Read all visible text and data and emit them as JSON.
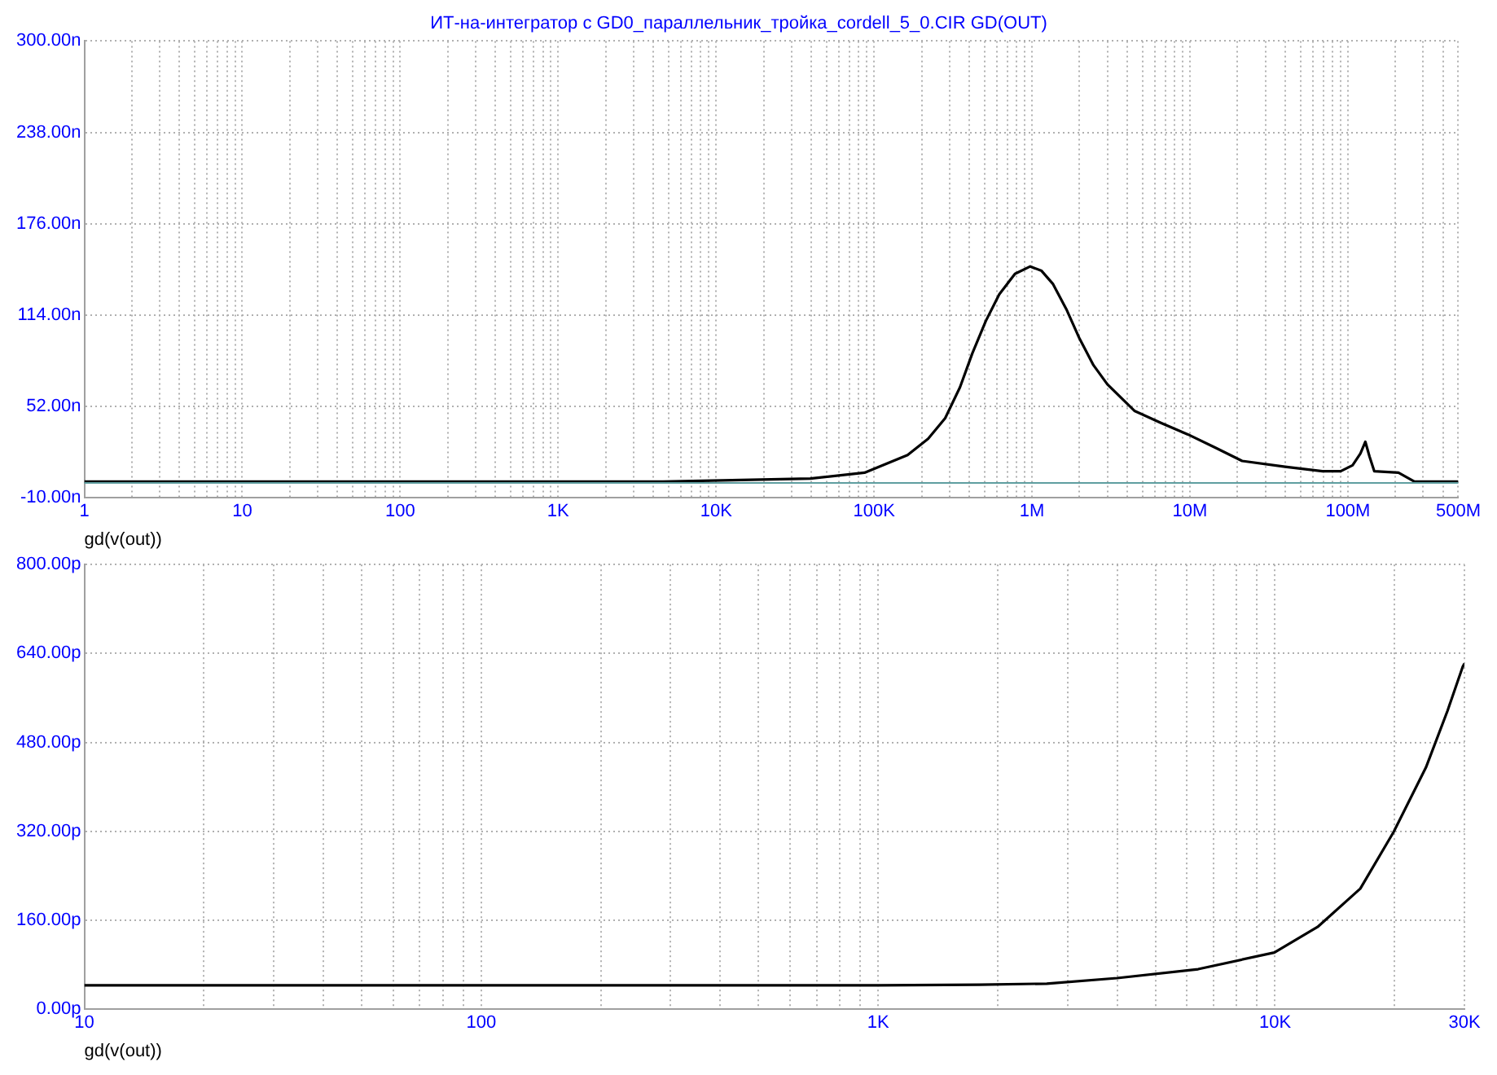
{
  "chart_data": [
    {
      "type": "line",
      "title": "ИТ-на-интегратор с GD0_параллельник_тройка_cordell_5_0.CIR GD(OUT)",
      "xlabel": "gd(v(out))",
      "log": "x",
      "grid": true,
      "marker": "none",
      "line_style": "solid",
      "xlim": [
        1,
        500000000
      ],
      "ylim": [
        -10,
        300
      ],
      "yticks": [
        {
          "value": -10,
          "label": "-10.00n"
        },
        {
          "value": 52,
          "label": "52.00n"
        },
        {
          "value": 114,
          "label": "114.00n"
        },
        {
          "value": 176,
          "label": "176.00n"
        },
        {
          "value": 238,
          "label": "238.00n"
        },
        {
          "value": 300,
          "label": "300.00n"
        }
      ],
      "xticks": [
        1,
        {
          "value": 2,
          "label": null
        },
        {
          "value": 3,
          "label": null
        },
        {
          "value": 4,
          "label": null
        },
        {
          "value": 5,
          "label": null
        },
        {
          "value": 6,
          "label": null
        },
        {
          "value": 7,
          "label": null
        },
        {
          "value": 8,
          "label": null
        },
        {
          "value": 9,
          "label": null
        },
        10,
        {
          "value": 20,
          "label": null
        },
        {
          "value": 30,
          "label": null
        },
        {
          "value": 40,
          "label": null
        },
        {
          "value": 50,
          "label": null
        },
        {
          "value": 60,
          "label": null
        },
        {
          "value": 70,
          "label": null
        },
        {
          "value": 80,
          "label": null
        },
        {
          "value": 90,
          "label": null
        },
        100,
        {
          "value": 200,
          "label": null
        },
        {
          "value": 300,
          "label": null
        },
        {
          "value": 400,
          "label": null
        },
        {
          "value": 500,
          "label": null
        },
        {
          "value": 600,
          "label": null
        },
        {
          "value": 700,
          "label": null
        },
        {
          "value": 800,
          "label": null
        },
        {
          "value": 900,
          "label": null
        },
        {
          "value": 1000,
          "label": "1K"
        },
        {
          "value": 2000,
          "label": null
        },
        {
          "value": 3000,
          "label": null
        },
        {
          "value": 4000,
          "label": null
        },
        {
          "value": 5000,
          "label": null
        },
        {
          "value": 6000,
          "label": null
        },
        {
          "value": 7000,
          "label": null
        },
        {
          "value": 8000,
          "label": null
        },
        {
          "value": 9000,
          "label": null
        },
        {
          "value": 10000,
          "label": "10K"
        },
        {
          "value": 20000,
          "label": null
        },
        {
          "value": 30000,
          "label": null
        },
        {
          "value": 40000,
          "label": null
        },
        {
          "value": 50000,
          "label": null
        },
        {
          "value": 60000,
          "label": null
        },
        {
          "value": 70000,
          "label": null
        },
        {
          "value": 80000,
          "label": null
        },
        {
          "value": 90000,
          "label": null
        },
        {
          "value": 100000,
          "label": "100K"
        },
        {
          "value": 200000,
          "label": null
        },
        {
          "value": 300000,
          "label": null
        },
        {
          "value": 400000,
          "label": null
        },
        {
          "value": 500000,
          "label": null
        },
        {
          "value": 600000,
          "label": null
        },
        {
          "value": 700000,
          "label": null
        },
        {
          "value": 800000,
          "label": null
        },
        {
          "value": 900000,
          "label": null
        },
        {
          "value": 1000000,
          "label": "1M"
        },
        {
          "value": 2000000,
          "label": null
        },
        {
          "value": 3000000,
          "label": null
        },
        {
          "value": 4000000,
          "label": null
        },
        {
          "value": 5000000,
          "label": null
        },
        {
          "value": 6000000,
          "label": null
        },
        {
          "value": 7000000,
          "label": null
        },
        {
          "value": 8000000,
          "label": null
        },
        {
          "value": 9000000,
          "label": null
        },
        {
          "value": 10000000,
          "label": "10M"
        },
        {
          "value": 20000000,
          "label": null
        },
        {
          "value": 30000000,
          "label": null
        },
        {
          "value": 40000000,
          "label": null
        },
        {
          "value": 50000000,
          "label": null
        },
        {
          "value": 60000000,
          "label": null
        },
        {
          "value": 70000000,
          "label": null
        },
        {
          "value": 80000000,
          "label": null
        },
        {
          "value": 90000000,
          "label": null
        },
        {
          "value": 100000000,
          "label": "100M"
        },
        {
          "value": 200000000,
          "label": null
        },
        {
          "value": 300000000,
          "label": null
        },
        {
          "value": 400000000,
          "label": null
        },
        {
          "value": 500000000,
          "label": "500M"
        }
      ],
      "ref_lines": [
        {
          "axis": "y",
          "value": 0,
          "color": "#5f9ea0"
        }
      ],
      "series": [
        {
          "color": "#000000",
          "x": [
            1,
            2.1,
            2.2,
            4400,
            4600,
            39500,
            87000,
            163000,
            220000,
            282000,
            350000,
            419000,
            510000,
            620000,
            780000,
            975000,
            1150000,
            1360000,
            1650000,
            2000000,
            2450000,
            3000000,
            4450000,
            6500000,
            9700000,
            14500000,
            21400000,
            40000000,
            69000000,
            90000000,
            107000000,
            120000000,
            129000000,
            137000000,
            147000000,
            209000000,
            264000000,
            500000000
          ],
          "values": [
            1,
            1,
            1,
            1,
            1,
            3,
            7,
            19,
            30,
            44,
            65,
            88,
            110,
            128,
            142,
            147,
            144,
            135,
            118,
            98,
            80,
            67,
            49,
            41,
            33,
            24,
            15,
            11,
            8,
            8,
            12,
            20,
            28,
            18,
            8,
            7,
            1,
            1
          ]
        }
      ]
    },
    {
      "type": "line",
      "xlabel": "gd(v(out))",
      "log": "x",
      "grid": true,
      "marker": "none",
      "line_style": "solid",
      "xlim": [
        10,
        30000
      ],
      "ylim": [
        0,
        800
      ],
      "yticks": [
        {
          "value": 0,
          "label": "0.00p"
        },
        {
          "value": 160,
          "label": "160.00p"
        },
        {
          "value": 320,
          "label": "320.00p"
        },
        {
          "value": 480,
          "label": "480.00p"
        },
        {
          "value": 640,
          "label": "640.00p"
        },
        {
          "value": 800,
          "label": "800.00p"
        }
      ],
      "xticks": [
        10,
        {
          "value": 20,
          "label": null
        },
        {
          "value": 30,
          "label": null
        },
        {
          "value": 40,
          "label": null
        },
        {
          "value": 50,
          "label": null
        },
        {
          "value": 60,
          "label": null
        },
        {
          "value": 70,
          "label": null
        },
        {
          "value": 80,
          "label": null
        },
        {
          "value": 90,
          "label": null
        },
        100,
        {
          "value": 200,
          "label": null
        },
        {
          "value": 300,
          "label": null
        },
        {
          "value": 400,
          "label": null
        },
        {
          "value": 500,
          "label": null
        },
        {
          "value": 600,
          "label": null
        },
        {
          "value": 700,
          "label": null
        },
        {
          "value": 800,
          "label": null
        },
        {
          "value": 900,
          "label": null
        },
        {
          "value": 1000,
          "label": "1K"
        },
        {
          "value": 2000,
          "label": null
        },
        {
          "value": 3000,
          "label": null
        },
        {
          "value": 4000,
          "label": null
        },
        {
          "value": 5000,
          "label": null
        },
        {
          "value": 6000,
          "label": null
        },
        {
          "value": 7000,
          "label": null
        },
        {
          "value": 8000,
          "label": null
        },
        {
          "value": 9000,
          "label": null
        },
        {
          "value": 10000,
          "label": "10K"
        },
        {
          "value": 20000,
          "label": null
        },
        {
          "value": 30000,
          "label": "30K"
        }
      ],
      "series": [
        {
          "color": "#000000",
          "x": [
            10,
            1000,
            1800,
            2660,
            4000,
            6400,
            9960,
            12800,
            16400,
            19900,
            24000,
            27200,
            29700,
            30000
          ],
          "values": [
            43,
            43,
            44,
            46,
            56,
            72,
            102,
            148,
            217,
            319,
            435,
            537,
            616,
            622
          ]
        }
      ]
    }
  ]
}
